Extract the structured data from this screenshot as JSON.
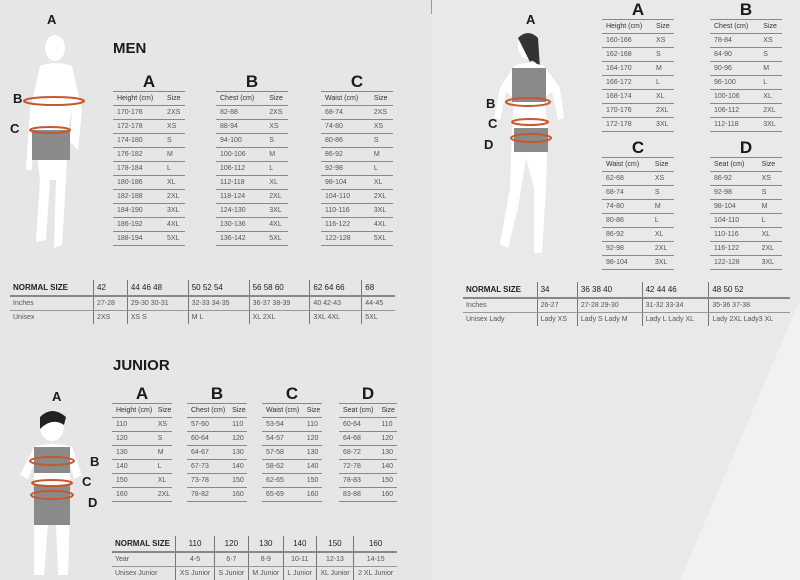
{
  "men": {
    "title": "MEN",
    "figure_labels": [
      "A",
      "B",
      "C"
    ],
    "tables": [
      {
        "letter": "A",
        "headers": [
          "Height (cm)",
          "Size"
        ],
        "rows": [
          [
            "170-176",
            "2XS"
          ],
          [
            "172-178",
            "XS"
          ],
          [
            "174-180",
            "S"
          ],
          [
            "176-182",
            "M"
          ],
          [
            "178-184",
            "L"
          ],
          [
            "180-186",
            "XL"
          ],
          [
            "182-188",
            "2XL"
          ],
          [
            "184-190",
            "3XL"
          ],
          [
            "186-192",
            "4XL"
          ],
          [
            "188-194",
            "5XL"
          ]
        ]
      },
      {
        "letter": "B",
        "headers": [
          "Chest (cm)",
          "Size"
        ],
        "rows": [
          [
            "82-88",
            "2XS"
          ],
          [
            "88-94",
            "XS"
          ],
          [
            "94-100",
            "S"
          ],
          [
            "100-106",
            "M"
          ],
          [
            "106-112",
            "L"
          ],
          [
            "112-118",
            "XL"
          ],
          [
            "118-124",
            "2XL"
          ],
          [
            "124-130",
            "3XL"
          ],
          [
            "130-136",
            "4XL"
          ],
          [
            "136-142",
            "5XL"
          ]
        ]
      },
      {
        "letter": "C",
        "headers": [
          "Waist (cm)",
          "Size"
        ],
        "rows": [
          [
            "68-74",
            "2XS"
          ],
          [
            "74-80",
            "XS"
          ],
          [
            "80-86",
            "S"
          ],
          [
            "86-92",
            "M"
          ],
          [
            "92-98",
            "L"
          ],
          [
            "98-104",
            "XL"
          ],
          [
            "104-110",
            "2XL"
          ],
          [
            "110-116",
            "3XL"
          ],
          [
            "116-122",
            "4XL"
          ],
          [
            "122-128",
            "5XL"
          ]
        ]
      }
    ],
    "normal_size": {
      "rows": [
        [
          "NORMAL SIZE",
          "42",
          "44   46   48",
          "50   52   54",
          "56   58   60",
          "62   64   66",
          "68"
        ],
        [
          "Inches",
          "27-28",
          "29-30      30-31",
          "32-33      34-35",
          "36-37      38-39",
          "40           42-43",
          "44-45"
        ],
        [
          "Unisex",
          "2XS",
          "XS           S",
          "M             L",
          "XL           2XL",
          "3XL         4XL",
          "5XL"
        ]
      ]
    }
  },
  "women": {
    "figure_labels": [
      "A",
      "B",
      "C",
      "D"
    ],
    "tables": [
      {
        "letter": "A",
        "headers": [
          "Height (cm)",
          "Size"
        ],
        "rows": [
          [
            "160-166",
            "XS"
          ],
          [
            "162-168",
            "S"
          ],
          [
            "164-170",
            "M"
          ],
          [
            "166-172",
            "L"
          ],
          [
            "168-174",
            "XL"
          ],
          [
            "170-176",
            "2XL"
          ],
          [
            "172-178",
            "3XL"
          ]
        ]
      },
      {
        "letter": "B",
        "headers": [
          "Chest (cm)",
          "Size"
        ],
        "rows": [
          [
            "78-84",
            "XS"
          ],
          [
            "84-90",
            "S"
          ],
          [
            "90-96",
            "M"
          ],
          [
            "96-100",
            "L"
          ],
          [
            "100-106",
            "XL"
          ],
          [
            "106-112",
            "2XL"
          ],
          [
            "112-118",
            "3XL"
          ]
        ]
      },
      {
        "letter": "C",
        "headers": [
          "Waist (cm)",
          "Size"
        ],
        "rows": [
          [
            "62-68",
            "XS"
          ],
          [
            "68-74",
            "S"
          ],
          [
            "74-80",
            "M"
          ],
          [
            "80-86",
            "L"
          ],
          [
            "86-92",
            "XL"
          ],
          [
            "92-98",
            "2XL"
          ],
          [
            "98-104",
            "3XL"
          ]
        ]
      },
      {
        "letter": "D",
        "headers": [
          "Seat (cm)",
          "Size"
        ],
        "rows": [
          [
            "86-92",
            "XS"
          ],
          [
            "92-98",
            "S"
          ],
          [
            "98-104",
            "M"
          ],
          [
            "104-110",
            "L"
          ],
          [
            "110-116",
            "XL"
          ],
          [
            "116-122",
            "2XL"
          ],
          [
            "122-128",
            "3XL"
          ]
        ]
      }
    ],
    "normal_size": {
      "rows": [
        [
          "NORMAL SIZE",
          "34",
          "36    38     40",
          "42     44     46",
          "48       50       52"
        ],
        [
          "Inches",
          "26-27",
          "27-28      29-30",
          "31-32      33-34",
          "35-36      37-38"
        ],
        [
          "Unisex Lady",
          "Lady XS",
          "Lady S    Lady M",
          "Lady L     Lady XL",
          "Lady 2XL  Lady3 XL"
        ]
      ]
    }
  },
  "junior": {
    "title": "JUNIOR",
    "figure_labels": [
      "A",
      "B",
      "C",
      "D"
    ],
    "tables": [
      {
        "letter": "A",
        "headers": [
          "Height (cm)",
          "Size"
        ],
        "rows": [
          [
            "110",
            "XS"
          ],
          [
            "120",
            "S"
          ],
          [
            "130",
            "M"
          ],
          [
            "140",
            "L"
          ],
          [
            "150",
            "XL"
          ],
          [
            "160",
            "2XL"
          ]
        ]
      },
      {
        "letter": "B",
        "headers": [
          "Chest (cm)",
          "Size"
        ],
        "rows": [
          [
            "57-60",
            "110"
          ],
          [
            "60-64",
            "120"
          ],
          [
            "64-67",
            "130"
          ],
          [
            "67-73",
            "140"
          ],
          [
            "73-78",
            "150"
          ],
          [
            "78-82",
            "160"
          ]
        ]
      },
      {
        "letter": "C",
        "headers": [
          "Waist (cm)",
          "Size"
        ],
        "rows": [
          [
            "53-54",
            "110"
          ],
          [
            "54-57",
            "120"
          ],
          [
            "57-58",
            "130"
          ],
          [
            "58-62",
            "140"
          ],
          [
            "62-65",
            "150"
          ],
          [
            "65-69",
            "160"
          ]
        ]
      },
      {
        "letter": "D",
        "headers": [
          "Seat (cm)",
          "Size"
        ],
        "rows": [
          [
            "60-64",
            "110"
          ],
          [
            "64-68",
            "120"
          ],
          [
            "68-72",
            "130"
          ],
          [
            "72-78",
            "140"
          ],
          [
            "78-83",
            "150"
          ],
          [
            "83-88",
            "160"
          ]
        ]
      }
    ],
    "normal_size": {
      "rows": [
        [
          "NORMAL SIZE",
          "110",
          "120",
          "130",
          "140",
          "150",
          "160"
        ],
        [
          "Year",
          "4-5",
          "6-7",
          "8-9",
          "10-11",
          "12-13",
          "14-15"
        ],
        [
          "Unisex Junior",
          "XS Junior",
          "S Junior",
          "M Junior",
          "L Junior",
          "XL Junior",
          "2 XL Junior"
        ]
      ]
    }
  },
  "colors": {
    "measure_ring": "#c8562e",
    "shorts": "#8a8a8a",
    "silhouette": "#ffffff",
    "background": "#e6e6e6"
  }
}
